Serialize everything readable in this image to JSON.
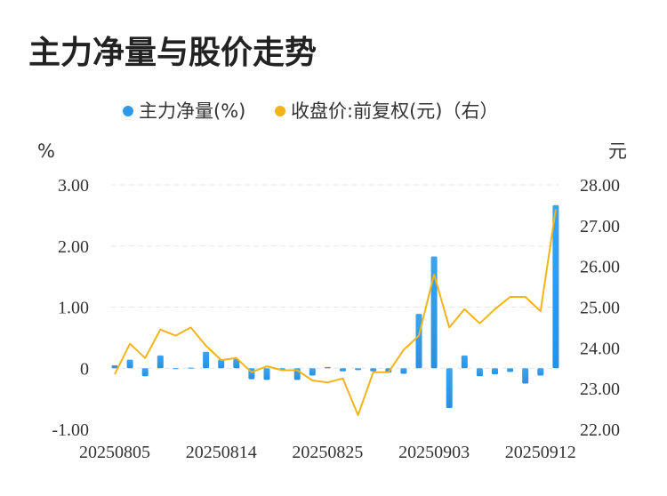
{
  "title": "主力净量与股价走势",
  "chart_data": {
    "type": "bar+line",
    "legend": [
      {
        "name": "主力净量(%)",
        "color": "#2f9ae8"
      },
      {
        "name": "收盘价:前复权(元)（右）",
        "color": "#f2b418"
      }
    ],
    "left_unit": "%",
    "right_unit": "元",
    "left_axis": {
      "min": -1.0,
      "max": 3.0,
      "ticks": [
        "-1.00",
        "0",
        "1.00",
        "2.00",
        "3.00"
      ]
    },
    "right_axis": {
      "min": 22.0,
      "max": 28.0,
      "ticks": [
        "22.00",
        "23.00",
        "24.00",
        "25.00",
        "26.00",
        "27.00",
        "28.00"
      ]
    },
    "x_ticks": [
      "20250805",
      "20250814",
      "20250825",
      "20250903",
      "20250912"
    ],
    "x_tick_index": [
      0,
      7,
      14,
      21,
      28
    ],
    "bar_color_top": "#3aa5f2",
    "bar_color_bottom": "#2a8fe0",
    "line_color": "#f2b418",
    "series": [
      {
        "name": "主力净量(%)",
        "values": [
          0.05,
          0.14,
          -0.13,
          0.21,
          0.0,
          0.01,
          0.27,
          0.14,
          0.15,
          -0.18,
          -0.19,
          -0.03,
          -0.19,
          -0.12,
          0.02,
          -0.05,
          -0.03,
          -0.05,
          -0.07,
          -0.09,
          0.89,
          1.83,
          -0.65,
          0.21,
          -0.13,
          -0.1,
          -0.06,
          -0.25,
          -0.12,
          2.67
        ]
      },
      {
        "name": "收盘价:前复权(元)（右）",
        "values": [
          23.35,
          24.1,
          23.75,
          24.45,
          24.3,
          24.5,
          24.05,
          23.7,
          23.75,
          23.4,
          23.55,
          23.45,
          23.45,
          23.2,
          23.15,
          23.25,
          22.35,
          23.4,
          23.4,
          23.95,
          24.3,
          25.8,
          24.5,
          24.95,
          24.6,
          24.95,
          25.25,
          25.25,
          24.9,
          27.4
        ]
      }
    ]
  }
}
